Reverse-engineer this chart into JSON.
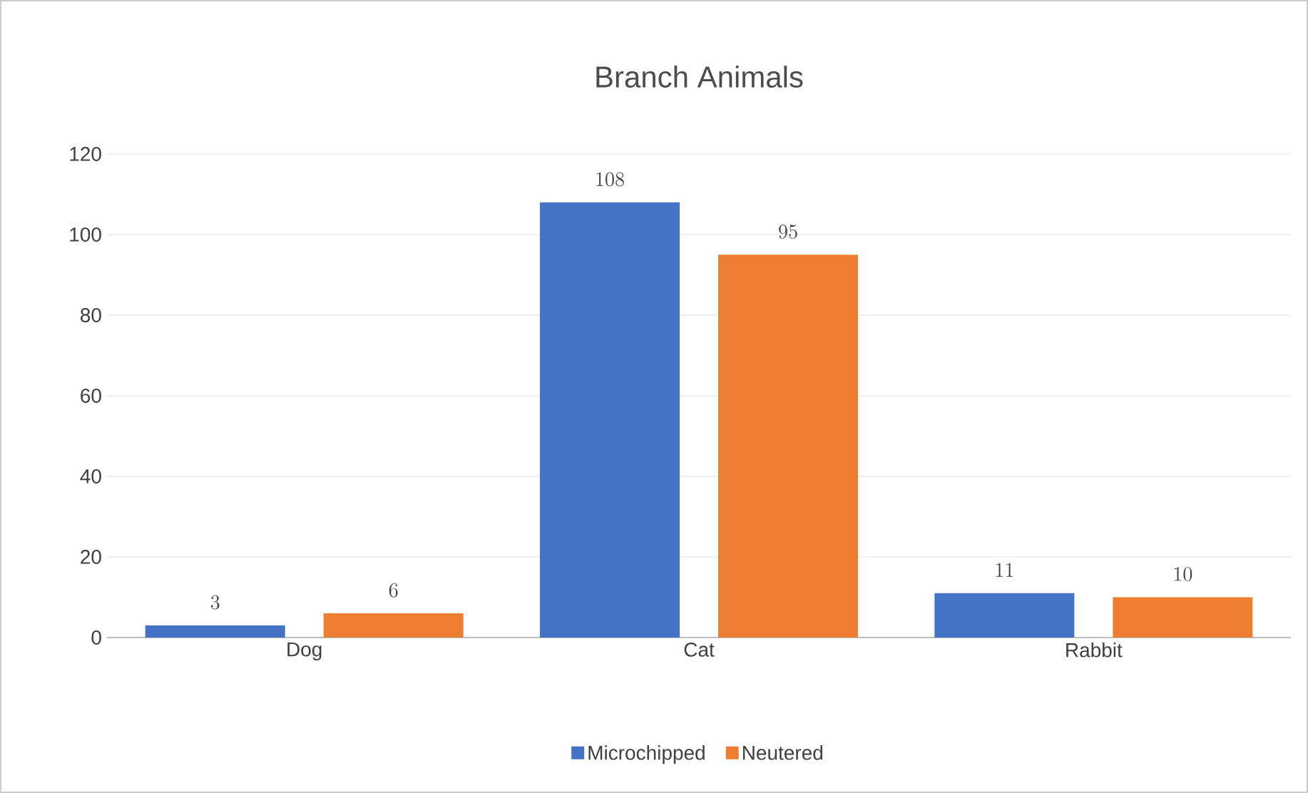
{
  "chart_data": {
    "type": "bar",
    "title": "Branch Animals",
    "categories": [
      "Dog",
      "Cat",
      "Rabbit"
    ],
    "series": [
      {
        "name": "Microchipped",
        "color": "#4472c4",
        "values": [
          3,
          108,
          11
        ]
      },
      {
        "name": "Neutered",
        "color": "#ed7d31",
        "values": [
          6,
          95,
          10
        ]
      }
    ],
    "ylim": [
      0,
      120
    ],
    "yticks": [
      0,
      20,
      40,
      60,
      80,
      100,
      120
    ],
    "grid": "y",
    "legend": "bottom",
    "data_labels": true
  }
}
